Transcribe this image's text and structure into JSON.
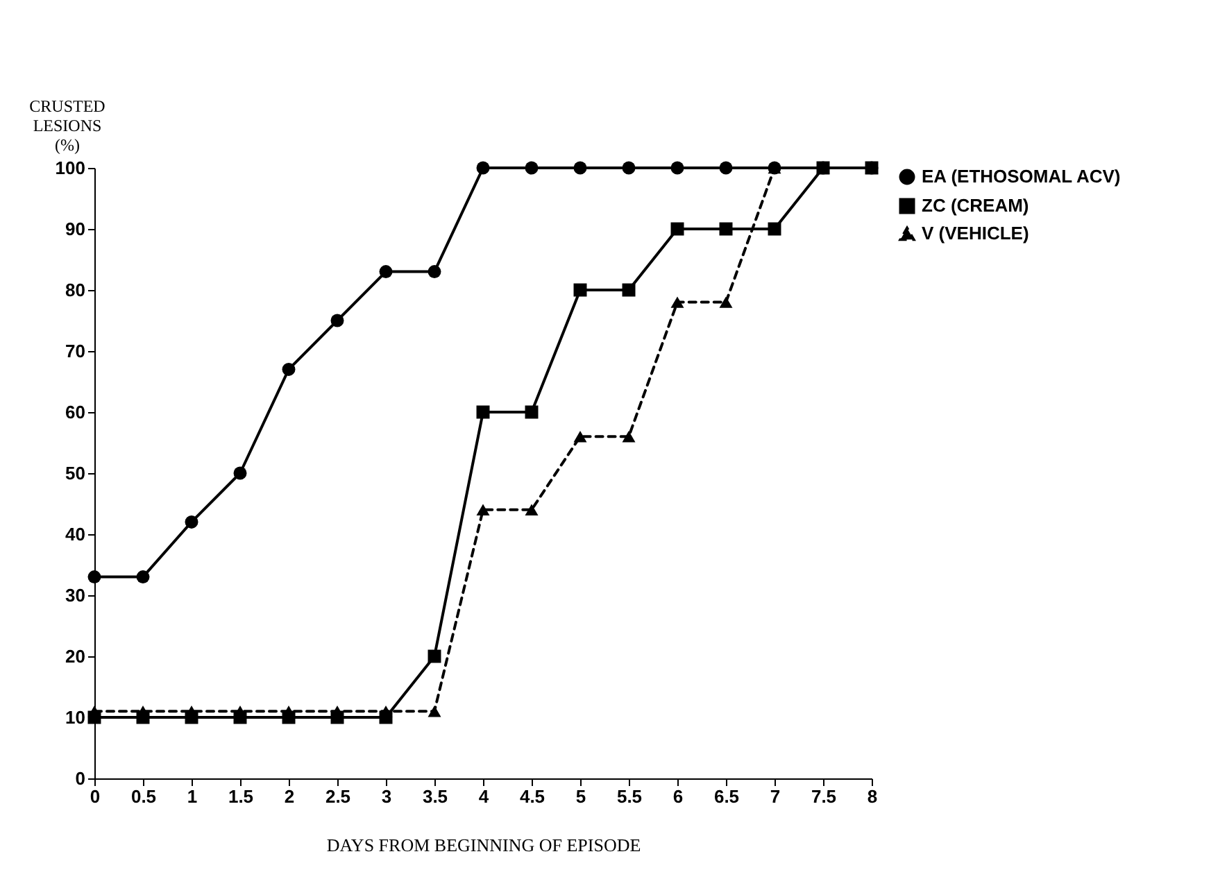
{
  "chart_data": {
    "type": "line",
    "xlabel": "DAYS FROM BEGINNING OF EPISODE",
    "ylabel": "CRUSTED LESIONS (%)",
    "x": [
      0,
      0.5,
      1,
      1.5,
      2,
      2.5,
      3,
      3.5,
      4,
      4.5,
      5,
      5.5,
      6,
      6.5,
      7,
      7.5,
      8
    ],
    "series": [
      {
        "name": "EA (ETHOSOMAL ACV)",
        "color": "#000000",
        "marker": "circle",
        "line_style": "solid",
        "values": [
          33,
          33,
          42,
          50,
          67,
          75,
          83,
          83,
          100,
          100,
          100,
          100,
          100,
          100,
          100,
          100,
          100
        ]
      },
      {
        "name": "ZC (CREAM)",
        "color": "#000000",
        "marker": "square",
        "line_style": "solid",
        "values": [
          10,
          10,
          10,
          10,
          10,
          10,
          10,
          20,
          60,
          60,
          80,
          80,
          90,
          90,
          90,
          100,
          100
        ]
      },
      {
        "name": "V (VEHICLE)",
        "color": "#000000",
        "marker": "triangle",
        "line_style": "dashed",
        "values": [
          11,
          11,
          11,
          11,
          11,
          11,
          11,
          11,
          44,
          44,
          56,
          56,
          78,
          78,
          100,
          100,
          100
        ]
      }
    ],
    "xlim": [
      0,
      8
    ],
    "xticks": [
      0,
      0.5,
      1,
      1.5,
      2,
      2.5,
      3,
      3.5,
      4,
      4.5,
      5,
      5.5,
      6,
      6.5,
      7,
      7.5,
      8
    ],
    "ylim": [
      0,
      100
    ],
    "yticks": [
      0,
      10,
      20,
      30,
      40,
      50,
      60,
      70,
      80,
      90,
      100
    ],
    "grid": false,
    "legend": "right"
  }
}
